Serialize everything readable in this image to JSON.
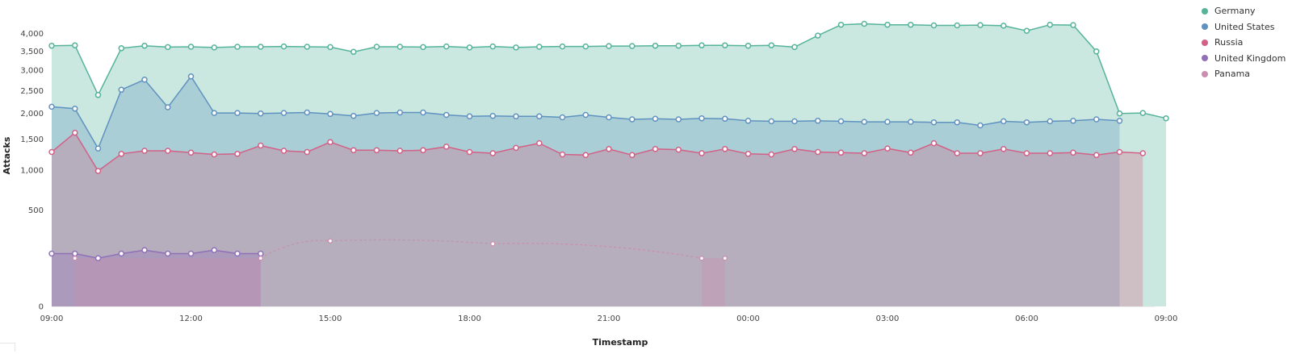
{
  "chart_data": {
    "type": "area",
    "xlabel": "Timestamp",
    "ylabel": "Attacks",
    "x_tick_labels": [
      "09:00",
      "12:00",
      "15:00",
      "18:00",
      "21:00",
      "00:00",
      "03:00",
      "06:00",
      "09:00"
    ],
    "y_tick_labels": [
      "0",
      "500",
      "1,000",
      "1,500",
      "2,000",
      "2,500",
      "3,000",
      "3,500",
      "4,000"
    ],
    "y_scale": "sqrt",
    "ylim": [
      0,
      4400
    ],
    "x_start": "09:00",
    "x_interval_minutes": 30,
    "legend_position": "top-right",
    "grid": false,
    "series": [
      {
        "name": "Germany",
        "color": "#54b399",
        "values": [
          3650,
          3660,
          2400,
          3580,
          3650,
          3610,
          3620,
          3600,
          3620,
          3620,
          3630,
          3620,
          3610,
          3480,
          3620,
          3620,
          3610,
          3630,
          3600,
          3630,
          3600,
          3620,
          3630,
          3630,
          3640,
          3640,
          3650,
          3650,
          3660,
          3660,
          3650,
          3660,
          3610,
          3940,
          4260,
          4290,
          4260,
          4260,
          4240,
          4240,
          4250,
          4230,
          4080,
          4260,
          4250,
          3490,
          2000,
          2010,
          1900
        ],
        "area": true
      },
      {
        "name": "United States",
        "color": "#6092c0",
        "values": [
          2140,
          2100,
          1340,
          2520,
          2760,
          2130,
          2840,
          2010,
          2010,
          2000,
          2010,
          2020,
          1990,
          1950,
          2010,
          2020,
          2020,
          1970,
          1940,
          1950,
          1940,
          1940,
          1920,
          1970,
          1920,
          1880,
          1890,
          1880,
          1900,
          1890,
          1850,
          1840,
          1840,
          1850,
          1840,
          1830,
          1830,
          1830,
          1820,
          1820,
          1760,
          1840,
          1820,
          1840,
          1850,
          1880,
          1850
        ],
        "area": true
      },
      {
        "name": "Russia",
        "color": "#d36086",
        "values": [
          1280,
          1620,
          985,
          1250,
          1300,
          1300,
          1270,
          1240,
          1250,
          1390,
          1300,
          1280,
          1450,
          1310,
          1310,
          1300,
          1310,
          1370,
          1280,
          1260,
          1350,
          1430,
          1240,
          1230,
          1330,
          1230,
          1330,
          1320,
          1260,
          1330,
          1250,
          1240,
          1330,
          1280,
          1270,
          1260,
          1340,
          1270,
          1430,
          1260,
          1260,
          1330,
          1260,
          1260,
          1270,
          1230,
          1280,
          1260
        ],
        "area": true
      },
      {
        "name": "United Kingdom",
        "color": "#9170b8",
        "values": [
          150,
          150,
          125,
          150,
          170,
          150,
          150,
          170,
          150,
          150
        ],
        "area": true
      },
      {
        "name": "Panama",
        "color": "#ca8eae",
        "points": [
          [
            1,
            125
          ],
          [
            9,
            125
          ],
          [
            12,
            230
          ],
          [
            19,
            210
          ],
          [
            28,
            125
          ],
          [
            29,
            125
          ]
        ],
        "area_ranges": [
          [
            1,
            9
          ],
          [
            28,
            29
          ]
        ],
        "dashed_between": [
          [
            9,
            12
          ],
          [
            12,
            19
          ],
          [
            19,
            28
          ]
        ]
      }
    ]
  }
}
